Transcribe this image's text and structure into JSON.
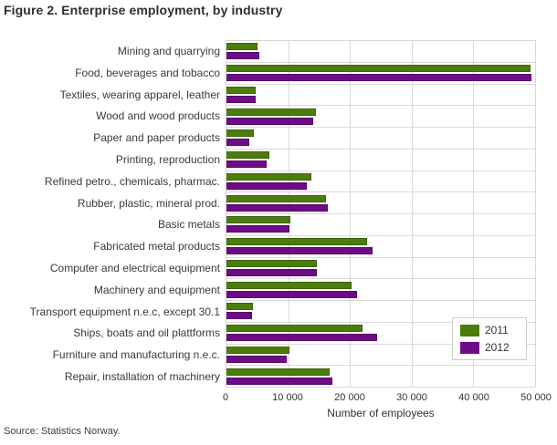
{
  "title": "Figure 2. Enterprise employment, by industry",
  "source": "Source: Statistics Norway.",
  "colors": {
    "series_2011": "#4c7d0c",
    "series_2011_border": "#3c6309",
    "series_2012": "#6d0c85",
    "series_2012_border": "#560768",
    "grid": "#d9d9d9",
    "text": "#3a3a3a"
  },
  "legend": {
    "items": [
      {
        "label": "2011",
        "color": "#4c7d0c"
      },
      {
        "label": "2012",
        "color": "#6d0c85"
      }
    ]
  },
  "chart_data": {
    "type": "bar",
    "orientation": "horizontal",
    "title": "Figure 2. Enterprise employment, by industry",
    "xlabel": "Number of employees",
    "ylabel": "",
    "xlim": [
      0,
      50000
    ],
    "grid": true,
    "legend_position": "inside-bottom-right",
    "xticks": [
      "0",
      "10 000",
      "20 000",
      "30 000",
      "40 000",
      "50 000"
    ],
    "xtick_values": [
      0,
      10000,
      20000,
      30000,
      40000,
      50000
    ],
    "categories": [
      "Mining and quarrying",
      "Food, beverages and tobacco",
      "Textiles, wearing apparel, leather",
      "Wood and wood products",
      "Paper and paper products",
      "Printing, reproduction",
      "Refined petro., chemicals, pharmac.",
      "Rubber, plastic, mineral prod.",
      "Basic metals",
      "Fabricated metal products",
      "Computer and electrical equipment",
      "Machinery and equipment",
      "Transport equipment n.e.c, except 30.1",
      "Ships, boats and oil plattforms",
      "Furniture and manufacturing n.e.c.",
      "Repair, installation of machinery"
    ],
    "series": [
      {
        "name": "2011",
        "color": "#4c7d0c",
        "border": "#3c6309",
        "values": [
          5000,
          49200,
          4800,
          14500,
          4400,
          6900,
          13800,
          16100,
          10300,
          22800,
          14600,
          20200,
          4300,
          22100,
          10200,
          16700
        ]
      },
      {
        "name": "2012",
        "color": "#6d0c85",
        "border": "#560768",
        "values": [
          5300,
          49400,
          4800,
          14100,
          3700,
          6500,
          13000,
          16400,
          10200,
          23700,
          14600,
          21100,
          4200,
          24400,
          9800,
          17100
        ]
      }
    ]
  }
}
